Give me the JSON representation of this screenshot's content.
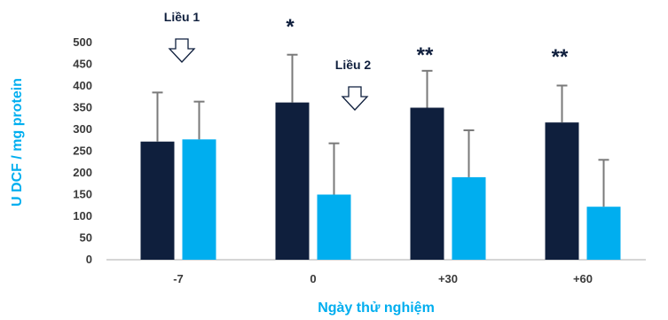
{
  "chart_data": {
    "type": "bar",
    "xlabel": "Ngày thử nghiệm",
    "ylabel": "U DCF / mg protein",
    "ylim": [
      0,
      500
    ],
    "yticks": [
      0,
      50,
      100,
      150,
      200,
      250,
      300,
      350,
      400,
      450,
      500
    ],
    "grid": false,
    "categories": [
      "-7",
      "0",
      "+30",
      "+60"
    ],
    "series": [
      {
        "values": [
          272,
          362,
          350,
          316
        ],
        "errors": [
          113,
          110,
          85,
          85
        ],
        "color": "#0f1f3d"
      },
      {
        "values": [
          277,
          150,
          190,
          122
        ],
        "errors": [
          87,
          118,
          108,
          108
        ],
        "color": "#00aeef"
      }
    ],
    "annotations": {
      "significance": [
        {
          "category": "0",
          "text": "*"
        },
        {
          "category": "+30",
          "text": "**"
        },
        {
          "category": "+60",
          "text": "**"
        }
      ],
      "doses": [
        {
          "label": "Liều 1",
          "at_category": "-7"
        },
        {
          "label": "Liều 2",
          "at_category": "0"
        }
      ]
    },
    "colors": {
      "label": "#00aeef",
      "error_bar": "#7a7a7a",
      "axis": "#c8c8c8"
    }
  }
}
